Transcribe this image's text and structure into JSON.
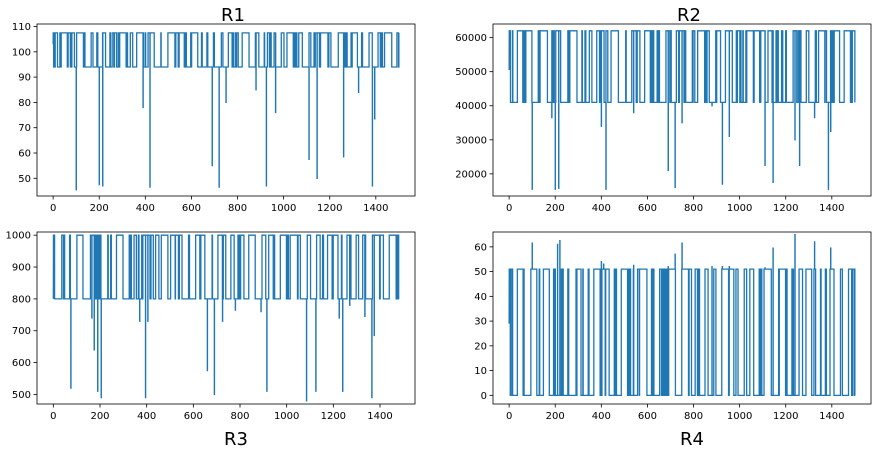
{
  "chart_data": [
    {
      "type": "line",
      "title": "R1",
      "title_position": "top",
      "xlabel": "",
      "ylabel": "",
      "xlim": [
        -70,
        1570
      ],
      "ylim": [
        43,
        111
      ],
      "xticks": [
        0,
        200,
        400,
        600,
        800,
        1000,
        1200,
        1400
      ],
      "yticks": [
        50,
        60,
        70,
        80,
        90,
        100,
        110
      ],
      "levels": {
        "high": 107.5,
        "low": 94
      },
      "dips": [
        [
          100,
          45.5
        ],
        [
          200,
          47.5
        ],
        [
          215,
          47
        ],
        [
          390,
          78
        ],
        [
          420,
          46.5
        ],
        [
          690,
          55
        ],
        [
          720,
          46.5
        ],
        [
          750,
          80
        ],
        [
          880,
          85
        ],
        [
          925,
          47
        ],
        [
          965,
          76
        ],
        [
          1110,
          57.5
        ],
        [
          1145,
          50
        ],
        [
          1260,
          58.5
        ],
        [
          1325,
          84
        ],
        [
          1385,
          47
        ],
        [
          1395,
          73.5
        ]
      ],
      "series": [
        {
          "name": "R1",
          "color": "#1f77b4",
          "x_range": [
            0,
            1500
          ],
          "start_value": 103
        }
      ]
    },
    {
      "type": "line",
      "title": "R2",
      "title_position": "top",
      "xlabel": "",
      "ylabel": "",
      "xlim": [
        -70,
        1570
      ],
      "ylim": [
        13500,
        64000
      ],
      "xticks": [
        0,
        200,
        400,
        600,
        800,
        1000,
        1200,
        1400
      ],
      "yticks": [
        20000,
        30000,
        40000,
        50000,
        60000
      ],
      "levels": {
        "high": 62000,
        "low": 41000
      },
      "dips": [
        [
          100,
          15500
        ],
        [
          200,
          15500
        ],
        [
          215,
          15800
        ],
        [
          185,
          36500
        ],
        [
          400,
          34000
        ],
        [
          420,
          15500
        ],
        [
          540,
          38000
        ],
        [
          690,
          21000
        ],
        [
          720,
          16000
        ],
        [
          750,
          35000
        ],
        [
          880,
          40000
        ],
        [
          925,
          17000
        ],
        [
          955,
          31000
        ],
        [
          1110,
          22500
        ],
        [
          1145,
          17500
        ],
        [
          1240,
          30000
        ],
        [
          1260,
          22500
        ],
        [
          1325,
          36500
        ],
        [
          1385,
          15500
        ],
        [
          1395,
          32500
        ]
      ],
      "series": [
        {
          "name": "R2",
          "color": "#1f77b4",
          "x_range": [
            0,
            1500
          ],
          "start_value": 50500
        }
      ]
    },
    {
      "type": "line",
      "title": "R3",
      "title_position": "bottom",
      "xlabel": "",
      "ylabel": "",
      "xlim": [
        -70,
        1550
      ],
      "ylim": [
        470,
        1010
      ],
      "xticks": [
        0,
        200,
        400,
        600,
        800,
        1000,
        1200,
        1400
      ],
      "yticks": [
        500,
        600,
        700,
        800,
        900,
        1000
      ],
      "levels": {
        "high": 1000,
        "low": 800
      },
      "dips": [
        [
          75,
          520
        ],
        [
          165,
          740
        ],
        [
          175,
          640
        ],
        [
          190,
          510
        ],
        [
          205,
          490
        ],
        [
          370,
          730
        ],
        [
          395,
          490
        ],
        [
          405,
          730
        ],
        [
          660,
          575
        ],
        [
          690,
          500
        ],
        [
          725,
          730
        ],
        [
          780,
          765
        ],
        [
          890,
          760
        ],
        [
          915,
          510
        ],
        [
          1085,
          480
        ],
        [
          1125,
          510
        ],
        [
          1225,
          740
        ],
        [
          1240,
          510
        ],
        [
          1270,
          780
        ],
        [
          1335,
          745
        ],
        [
          1365,
          490
        ],
        [
          1375,
          685
        ]
      ],
      "series": [
        {
          "name": "R3",
          "color": "#1f77b4",
          "x_range": [
            0,
            1480
          ],
          "start_value": 800
        }
      ]
    },
    {
      "type": "line",
      "title": "R4",
      "title_position": "bottom",
      "xlabel": "",
      "ylabel": "",
      "xlim": [
        -70,
        1570
      ],
      "ylim": [
        -3.5,
        66
      ],
      "xticks": [
        0,
        200,
        400,
        600,
        800,
        1000,
        1200,
        1400
      ],
      "yticks": [
        0,
        10,
        20,
        30,
        40,
        50,
        60
      ],
      "levels": {
        "high": 51,
        "low": 0
      },
      "spikes": [
        [
          100,
          61.5
        ],
        [
          210,
          61
        ],
        [
          220,
          62.5
        ],
        [
          400,
          54
        ],
        [
          410,
          53
        ],
        [
          540,
          52.5
        ],
        [
          690,
          52
        ],
        [
          720,
          57
        ],
        [
          750,
          61.5
        ],
        [
          880,
          52
        ],
        [
          925,
          52
        ],
        [
          955,
          52
        ],
        [
          1110,
          51.5
        ],
        [
          1145,
          59.5
        ],
        [
          1240,
          65
        ],
        [
          1325,
          62
        ],
        [
          1395,
          59.5
        ]
      ],
      "series": [
        {
          "name": "R4",
          "color": "#1f77b4",
          "x_range": [
            0,
            1500
          ],
          "start_value": 29
        }
      ]
    }
  ]
}
